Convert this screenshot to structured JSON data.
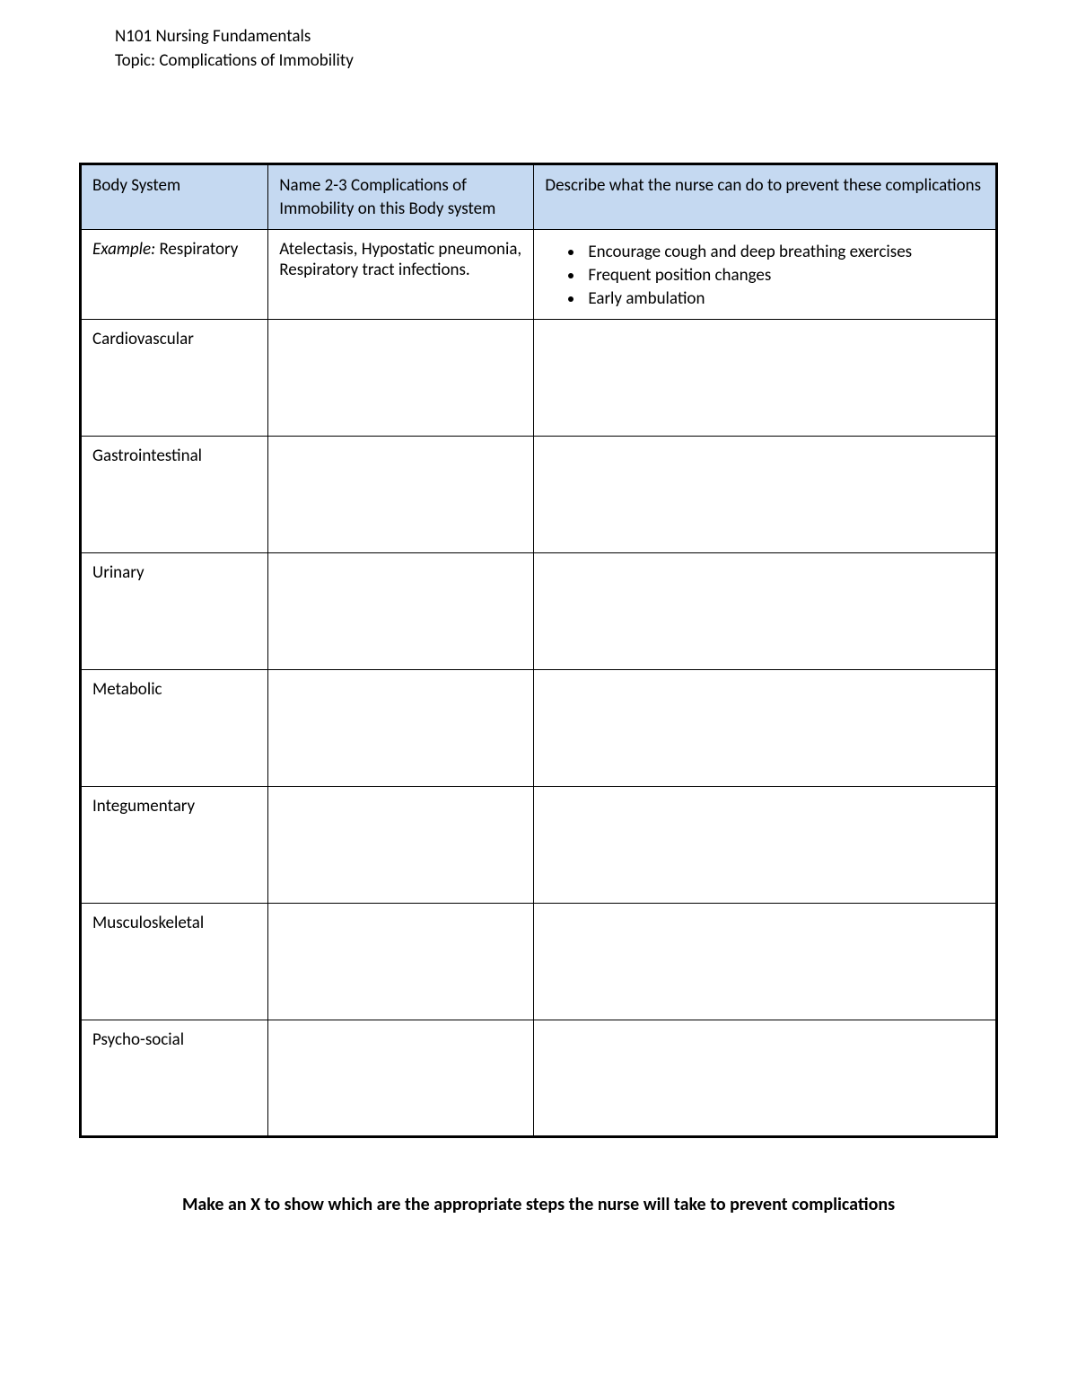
{
  "header": {
    "line1": "N101 Nursing Fundamentals",
    "line2": "Topic: Complications of Immobility"
  },
  "table": {
    "header_bg_color": "#c5d9f1",
    "border_color": "#000000",
    "columns": [
      {
        "label": "Body System",
        "width_percent": 20.5
      },
      {
        "label": "Name 2-3 Complications of Immobility on this Body system",
        "width_percent": 29
      },
      {
        "label": "Describe what the nurse can do to prevent these complications",
        "width_percent": 50.5
      }
    ],
    "rows": [
      {
        "system_prefix": "Example:",
        "system": "Respiratory",
        "complications": "Atelectasis, Hypostatic pneumonia, Respiratory tract infections.",
        "prevention_bullets": [
          "Encourage cough and deep breathing exercises",
          "Frequent position changes",
          "Early ambulation"
        ]
      },
      {
        "system": "Cardiovascular",
        "complications": "",
        "prevention_bullets": []
      },
      {
        "system": "Gastrointestinal",
        "complications": "",
        "prevention_bullets": []
      },
      {
        "system": "Urinary",
        "complications": "",
        "prevention_bullets": []
      },
      {
        "system": "Metabolic",
        "complications": "",
        "prevention_bullets": []
      },
      {
        "system": "Integumentary",
        "complications": "",
        "prevention_bullets": []
      },
      {
        "system": "Musculoskeletal",
        "complications": "",
        "prevention_bullets": []
      },
      {
        "system": "Psycho-social",
        "complications": "",
        "prevention_bullets": []
      }
    ]
  },
  "footer": {
    "text": "Make an X to show which are the appropriate steps the nurse will take to prevent complications"
  }
}
